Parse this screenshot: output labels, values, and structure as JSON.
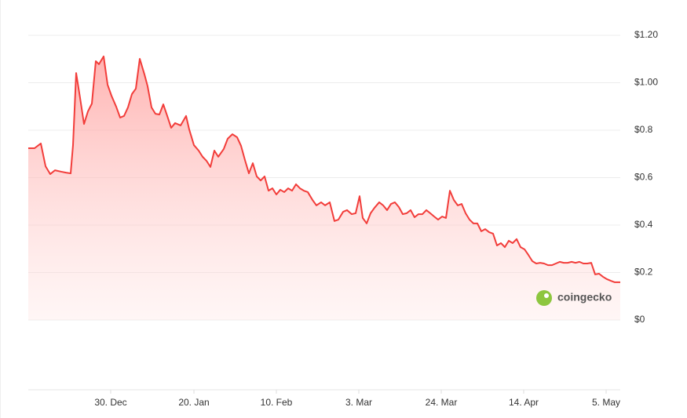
{
  "chart_data": {
    "type": "area",
    "watermark": "coingecko",
    "color": "#f23d3a",
    "xlim": [
      0,
      150.8
    ],
    "xticks": [
      {
        "value": 21,
        "label": "30. Dec"
      },
      {
        "value": 42.2,
        "label": "20. Jan"
      },
      {
        "value": 63.2,
        "label": "10. Feb"
      },
      {
        "value": 84.2,
        "label": "3. Mar"
      },
      {
        "value": 105.2,
        "label": "24. Mar"
      },
      {
        "value": 126.2,
        "label": "14. Apr"
      },
      {
        "value": 147.2,
        "label": "5. May"
      }
    ],
    "ylim": [
      0,
      1.2
    ],
    "yticks": [
      {
        "value": 0,
        "label": "$0"
      },
      {
        "value": 0.2,
        "label": "$0.2"
      },
      {
        "value": 0.4,
        "label": "$0.4"
      },
      {
        "value": 0.6,
        "label": "$0.6"
      },
      {
        "value": 0.8,
        "label": "$0.8"
      },
      {
        "value": 1.0,
        "label": "$1.00"
      },
      {
        "value": 1.2,
        "label": "$1.20"
      }
    ],
    "grid": true,
    "x": [
      0,
      1.6,
      3.2,
      4.4,
      5.6,
      6.8,
      8.4,
      9.6,
      10.8,
      11.4,
      12.2,
      13.2,
      14.2,
      15.2,
      16.2,
      17.2,
      18,
      19.2,
      20.2,
      21.2,
      22.4,
      23.4,
      24.4,
      25.4,
      26.4,
      27.4,
      28.4,
      29.6,
      30.4,
      31.4,
      32.4,
      33.4,
      34.4,
      35.4,
      36.4,
      37.4,
      38.8,
      40.2,
      41,
      42.2,
      43.4,
      44.4,
      45.4,
      46.4,
      47.4,
      48.4,
      49.8,
      50.8,
      52,
      53.2,
      54.2,
      55.2,
      56.2,
      57.2,
      58.2,
      59.2,
      60.2,
      61.2,
      62.2,
      63.2,
      64.2,
      65.2,
      66.2,
      67.2,
      68.2,
      69.2,
      70.2,
      71.2,
      72.4,
      73.4,
      74.6,
      75.6,
      76.8,
      78,
      79,
      80.2,
      81.2,
      82.4,
      83.4,
      84.4,
      85.2,
      86.2,
      87.2,
      88.2,
      89.4,
      90.4,
      91.4,
      92.4,
      93.4,
      94.4,
      95.4,
      96.4,
      97.4,
      98.4,
      99.4,
      100.4,
      101.4,
      102.4,
      103.4,
      104.4,
      105.4,
      106.4,
      107.4,
      108.4,
      109.4,
      110.4,
      111.4,
      112.4,
      113.4,
      114.4,
      115.4,
      116.4,
      117.4,
      118.4,
      119.4,
      120.4,
      121.4,
      122.4,
      123.4,
      124.4,
      125.4,
      126.4,
      127.4,
      128.4,
      129.4,
      130.4,
      131.4,
      132.4,
      133.4,
      134.4,
      135.4,
      136.4,
      137.4,
      138.4,
      139.4,
      140.4,
      141.4,
      142.4,
      143.4,
      144.4,
      145.4,
      146.4,
      147.4,
      148.4,
      149.4,
      150.8
    ],
    "values": [
      0.724,
      0.724,
      0.744,
      0.648,
      0.615,
      0.631,
      0.625,
      0.621,
      0.618,
      0.737,
      1.041,
      0.936,
      0.826,
      0.879,
      0.912,
      1.091,
      1.078,
      1.111,
      0.992,
      0.945,
      0.899,
      0.853,
      0.86,
      0.896,
      0.952,
      0.975,
      1.101,
      1.035,
      0.985,
      0.896,
      0.869,
      0.866,
      0.909,
      0.86,
      0.81,
      0.83,
      0.82,
      0.86,
      0.803,
      0.737,
      0.714,
      0.688,
      0.671,
      0.645,
      0.714,
      0.688,
      0.721,
      0.764,
      0.783,
      0.77,
      0.734,
      0.674,
      0.618,
      0.661,
      0.605,
      0.588,
      0.605,
      0.545,
      0.555,
      0.529,
      0.549,
      0.539,
      0.555,
      0.545,
      0.572,
      0.555,
      0.545,
      0.539,
      0.506,
      0.483,
      0.496,
      0.483,
      0.496,
      0.417,
      0.423,
      0.456,
      0.463,
      0.446,
      0.45,
      0.522,
      0.43,
      0.407,
      0.45,
      0.473,
      0.496,
      0.483,
      0.463,
      0.489,
      0.496,
      0.476,
      0.446,
      0.45,
      0.463,
      0.433,
      0.446,
      0.446,
      0.463,
      0.45,
      0.436,
      0.423,
      0.436,
      0.43,
      0.545,
      0.506,
      0.483,
      0.489,
      0.45,
      0.423,
      0.407,
      0.407,
      0.374,
      0.383,
      0.37,
      0.364,
      0.314,
      0.324,
      0.307,
      0.334,
      0.324,
      0.341,
      0.307,
      0.298,
      0.274,
      0.248,
      0.238,
      0.241,
      0.238,
      0.231,
      0.231,
      0.238,
      0.245,
      0.241,
      0.241,
      0.245,
      0.241,
      0.245,
      0.238,
      0.238,
      0.241,
      0.192,
      0.195,
      0.182,
      0.172,
      0.165,
      0.159,
      0.159
    ]
  }
}
